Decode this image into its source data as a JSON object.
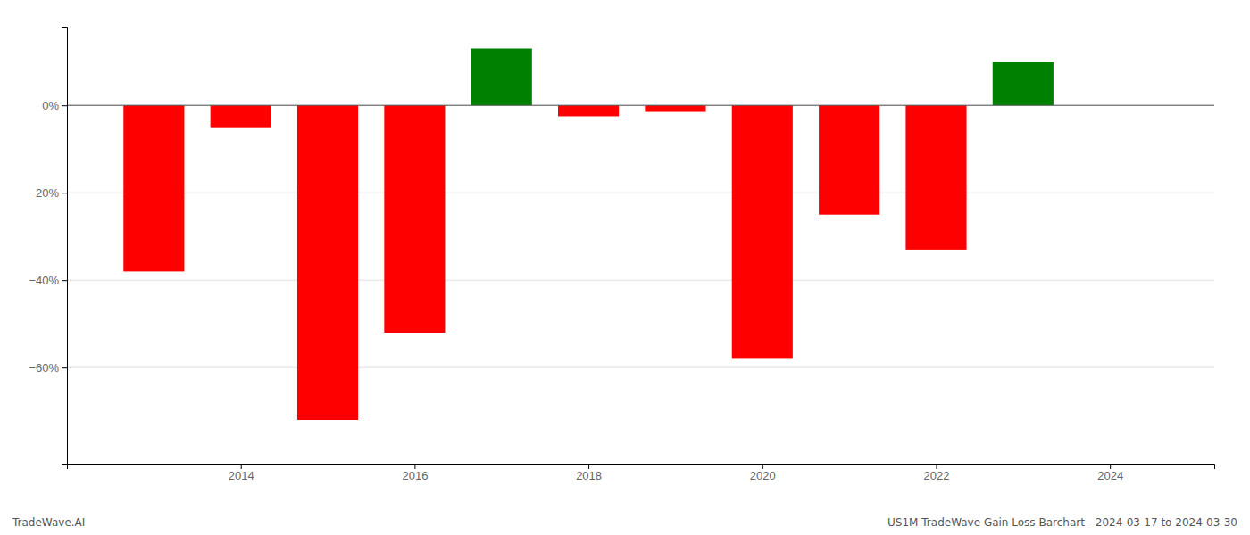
{
  "chart_data": {
    "type": "bar",
    "x": [
      2013,
      2014,
      2015,
      2016,
      2017,
      2018,
      2019,
      2020,
      2021,
      2022,
      2023
    ],
    "values": [
      -38.0,
      -5.0,
      -72.0,
      -52.0,
      13.0,
      -2.5,
      -1.5,
      -58.0,
      -25.0,
      -33.0,
      10.0
    ],
    "colors": [
      "#ff0000",
      "#ff0000",
      "#ff0000",
      "#ff0000",
      "#008000",
      "#ff0000",
      "#ff0000",
      "#ff0000",
      "#ff0000",
      "#ff0000",
      "#008000"
    ],
    "xlim": [
      2012.0,
      2025.2
    ],
    "xticks": [
      2014,
      2016,
      2018,
      2020,
      2022,
      2024
    ],
    "ylim": [
      -82,
      18
    ],
    "yticks": [
      {
        "value": 0,
        "label": "0%"
      },
      {
        "value": -20,
        "label": "−20%"
      },
      {
        "value": -40,
        "label": "−40%"
      },
      {
        "value": -60,
        "label": "−60%"
      }
    ],
    "grid": true,
    "annotations": [
      "TradeWave.AI",
      "US1M TradeWave Gain Loss Barchart - 2024-03-17 to 2024-03-30"
    ]
  }
}
